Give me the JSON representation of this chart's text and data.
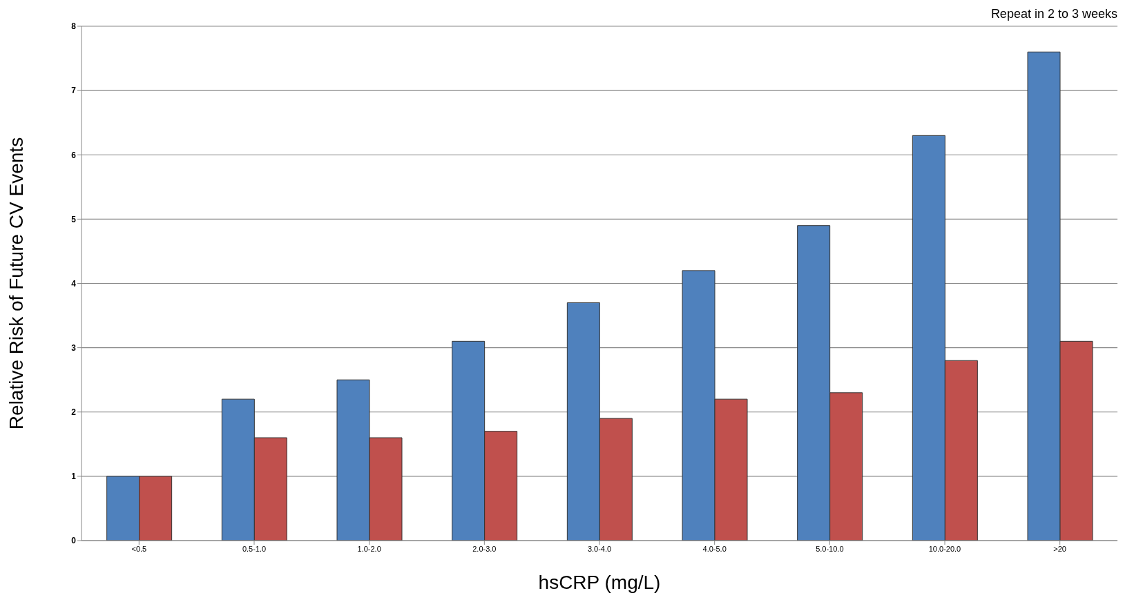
{
  "chart_data": {
    "type": "bar",
    "xlabel": "hsCRP (mg/L)",
    "ylabel": "Relative Risk of Future CV Events",
    "annotations": [
      "Repeat in 2 to 3 weeks"
    ],
    "categories": [
      "<0.5",
      "0.5-1.0",
      "1.0-2.0",
      "2.0-3.0",
      "3.0-4.0",
      "4.0-5.0",
      "5.0-10.0",
      "10.0-20.0",
      ">20"
    ],
    "series": [
      {
        "color": "#4f81bd",
        "values": [
          1,
          2.2,
          2.5,
          3.1,
          3.7,
          4.2,
          4.9,
          6.3,
          7.6
        ]
      },
      {
        "color": "#c0504d",
        "values": [
          1,
          1.6,
          1.6,
          1.7,
          1.9,
          2.2,
          2.3,
          2.8,
          3.1
        ]
      }
    ],
    "ylim": [
      0,
      8
    ],
    "yticks": [
      0,
      1,
      2,
      3,
      4,
      5,
      6,
      7,
      8
    ],
    "grid": "y",
    "legend": false
  }
}
